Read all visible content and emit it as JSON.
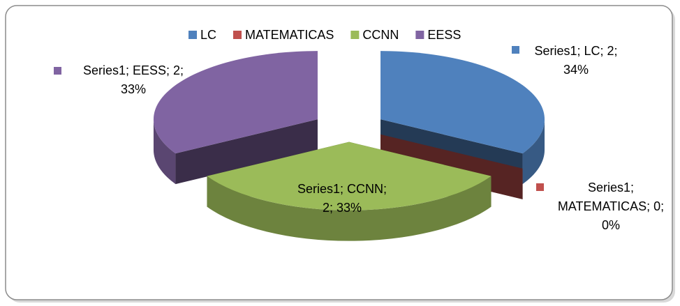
{
  "chart_data": {
    "type": "pie3d",
    "categories": [
      "LC",
      "MATEMATICAS",
      "CCNN",
      "EESS"
    ],
    "values": [
      2,
      0,
      2,
      2
    ],
    "value_labels": [
      "Series1; LC; 2; 34%",
      "Series1; MATEMATICAS; 0; 0%",
      "Series1; CCNN; 2; 33%",
      "Series1; EESS; 2; 33%"
    ],
    "colors": [
      "#4f81bd",
      "#c0504d",
      "#9bbb59",
      "#8064a2"
    ],
    "legend": "top"
  }
}
